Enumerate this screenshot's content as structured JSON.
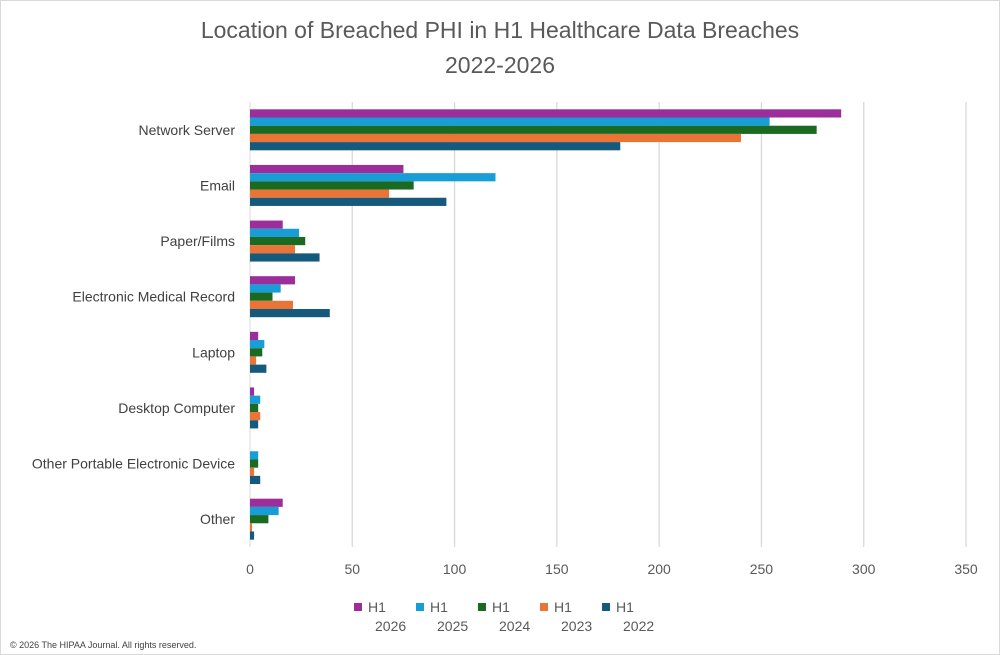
{
  "chart_data": {
    "type": "bar",
    "orientation": "horizontal",
    "title": [
      "Location of Breached PHI in H1 Healthcare Data Breaches",
      "2022-2026"
    ],
    "categories": [
      "Network Server",
      "Email",
      "Paper/Films",
      "Electronic Medical Record",
      "Laptop",
      "Desktop Computer",
      "Other Portable Electronic Device",
      "Other"
    ],
    "series": [
      {
        "name": [
          "H1",
          "2026"
        ],
        "color": "#9b2e9b",
        "values": [
          289,
          75,
          16,
          22,
          4,
          2,
          0,
          16
        ]
      },
      {
        "name": [
          "H1",
          "2025"
        ],
        "color": "#189ed6",
        "values": [
          254,
          120,
          24,
          15,
          7,
          5,
          4,
          14
        ]
      },
      {
        "name": [
          "H1",
          "2024"
        ],
        "color": "#1a6b21",
        "values": [
          277,
          80,
          27,
          11,
          6,
          4,
          4,
          9
        ]
      },
      {
        "name": [
          "H1",
          "2023"
        ],
        "color": "#ea7435",
        "values": [
          240,
          68,
          22,
          21,
          3,
          5,
          2,
          1
        ]
      },
      {
        "name": [
          "H1",
          "2022"
        ],
        "color": "#155a7d",
        "values": [
          181,
          96,
          34,
          39,
          8,
          4,
          5,
          2
        ]
      }
    ],
    "x_ticks": [
      0,
      50,
      100,
      150,
      200,
      250,
      300,
      350
    ],
    "xlim": [
      0,
      350
    ],
    "grid": true,
    "legend_position": "bottom"
  },
  "footer": {
    "copyright": "© 2026 The HIPAA Journal. All rights reserved."
  }
}
